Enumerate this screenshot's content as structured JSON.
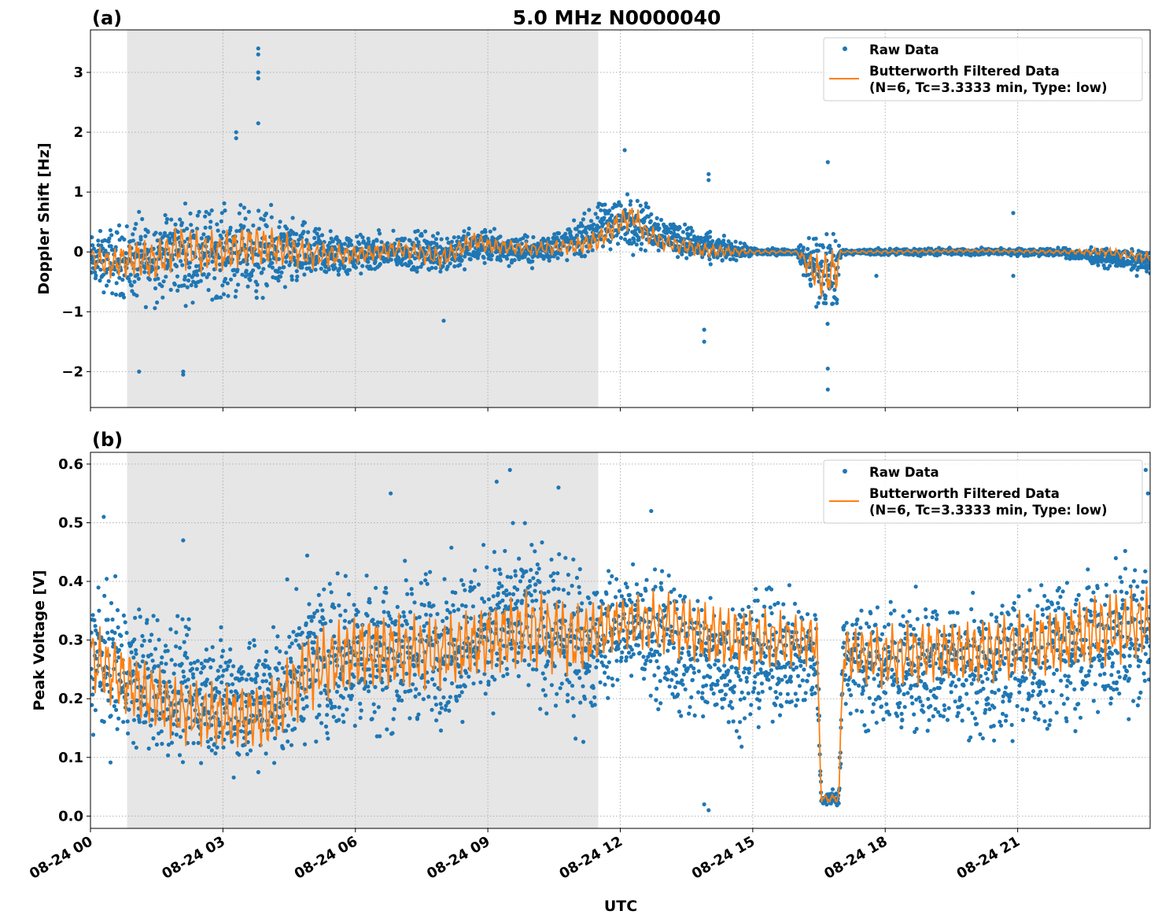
{
  "title": "5.0 MHz N0000040",
  "colors": {
    "raw": "#1f77b4",
    "filtered": "#ff7f0e",
    "shade": "#e6e6e6",
    "grid": "#b0b0b0"
  },
  "x_axis": {
    "label": "UTC",
    "ticks": [
      "08-24 00",
      "08-24 03",
      "08-24 06",
      "08-24 09",
      "08-24 12",
      "08-24 15",
      "08-24 18",
      "08-24 21"
    ],
    "tick_hours": [
      0,
      3,
      6,
      9,
      12,
      15,
      18,
      21
    ],
    "range_hours": [
      0,
      24
    ]
  },
  "chart_data": [
    {
      "type": "scatter",
      "panel_label": "(a)",
      "ylabel": "Doppler Shift [Hz]",
      "ylim": [
        -2.6,
        3.71
      ],
      "yticks": [
        -2,
        -1,
        0,
        1,
        2,
        3
      ],
      "ytick_labels": [
        "−2",
        "−1",
        "0",
        "1",
        "2",
        "3"
      ],
      "grid": true,
      "shaded_region_hours": [
        0.83,
        11.5
      ],
      "legend": {
        "position": "top-right",
        "entries": [
          "Raw Data",
          "Butterworth Filtered Data",
          "(N=6, Tc=3.3333 min, Type: low)"
        ]
      },
      "series": [
        {
          "name": "Raw Data",
          "kind": "points",
          "hours": [
            0,
            1,
            2,
            3,
            4,
            5,
            6,
            7,
            8,
            9,
            10,
            11,
            11.8,
            12.3,
            13,
            14,
            15,
            16,
            16.5,
            16.9,
            17,
            18,
            19,
            20,
            21,
            22,
            23,
            24
          ],
          "low": [
            -0.7,
            -1.1,
            -1.0,
            -1.0,
            -1.0,
            -0.7,
            -0.5,
            -0.4,
            -0.5,
            -0.3,
            -0.3,
            -0.2,
            -0.1,
            -0.1,
            -0.1,
            -0.3,
            -0.1,
            -0.05,
            -1.5,
            -1.5,
            -0.05,
            -0.08,
            -0.08,
            -0.08,
            -0.08,
            -0.1,
            -0.3,
            -0.45
          ],
          "high": [
            0.4,
            0.8,
            1.0,
            1.0,
            0.9,
            0.6,
            0.4,
            0.4,
            0.5,
            0.5,
            0.3,
            0.6,
            1.1,
            1.1,
            0.7,
            0.4,
            0.1,
            0.05,
            0.8,
            0.8,
            0.05,
            0.08,
            0.08,
            0.08,
            0.08,
            0.08,
            0.1,
            0.1
          ],
          "outliers": [
            [
              3.8,
              3.4
            ],
            [
              3.8,
              3.3
            ],
            [
              3.8,
              3.0
            ],
            [
              3.8,
              2.9
            ],
            [
              3.8,
              2.15
            ],
            [
              3.3,
              2.0
            ],
            [
              3.3,
              1.9
            ],
            [
              2.1,
              -2.0
            ],
            [
              2.1,
              -2.05
            ],
            [
              1.1,
              -2.0
            ],
            [
              12.1,
              1.7
            ],
            [
              14.0,
              1.3
            ],
            [
              14.0,
              1.2
            ],
            [
              13.9,
              -1.5
            ],
            [
              13.9,
              -1.3
            ],
            [
              16.7,
              -2.3
            ],
            [
              16.7,
              -1.95
            ],
            [
              16.7,
              1.5
            ],
            [
              20.9,
              0.65
            ],
            [
              20.9,
              -0.4
            ],
            [
              17.8,
              -0.4
            ],
            [
              8.0,
              -1.15
            ]
          ]
        },
        {
          "name": "Butterworth Filtered Data",
          "kind": "line",
          "hours": [
            0,
            0.5,
            1,
            1.5,
            2,
            2.5,
            3,
            3.5,
            4,
            5,
            6,
            7,
            8,
            8.7,
            9,
            10,
            11,
            11.5,
            12,
            12.3,
            12.6,
            13,
            14,
            15,
            16,
            16.5,
            16.9,
            17,
            18,
            20,
            22,
            23,
            24
          ],
          "values": [
            -0.1,
            -0.2,
            -0.1,
            -0.15,
            0.1,
            0.0,
            0.0,
            0.1,
            0.1,
            -0.05,
            -0.05,
            0.05,
            -0.1,
            0.2,
            0.1,
            0.05,
            0.1,
            0.2,
            0.5,
            0.6,
            0.3,
            0.15,
            0.02,
            0.0,
            0.0,
            -0.4,
            -0.3,
            0.0,
            0.0,
            0.02,
            0.0,
            0.0,
            -0.1
          ]
        }
      ]
    },
    {
      "type": "scatter",
      "panel_label": "(b)",
      "ylabel": "Peak Voltage [V]",
      "ylim": [
        -0.021,
        0.62
      ],
      "yticks": [
        0.0,
        0.1,
        0.2,
        0.3,
        0.4,
        0.5,
        0.6
      ],
      "ytick_labels": [
        "0.0",
        "0.1",
        "0.2",
        "0.3",
        "0.4",
        "0.5",
        "0.6"
      ],
      "grid": true,
      "shaded_region_hours": [
        0.83,
        11.5
      ],
      "legend": {
        "position": "top-right",
        "entries": [
          "Raw Data",
          "Butterworth Filtered Data",
          "(N=6, Tc=3.3333 min, Type: low)"
        ]
      },
      "series": [
        {
          "name": "Raw Data",
          "kind": "points",
          "hours": [
            0,
            1,
            2,
            3,
            4,
            5,
            6,
            7,
            8,
            9,
            10,
            11,
            12,
            13,
            14,
            15,
            16,
            16.45,
            16.55,
            16.95,
            17.05,
            18,
            19,
            20,
            21,
            22,
            23,
            24
          ],
          "low": [
            0.1,
            0.07,
            0.05,
            0.05,
            0.03,
            0.08,
            0.1,
            0.1,
            0.12,
            0.15,
            0.15,
            0.1,
            0.2,
            0.15,
            0.1,
            0.12,
            0.15,
            0.15,
            0.01,
            0.01,
            0.15,
            0.1,
            0.1,
            0.1,
            0.1,
            0.12,
            0.12,
            0.15
          ],
          "high": [
            0.45,
            0.4,
            0.36,
            0.36,
            0.36,
            0.45,
            0.46,
            0.46,
            0.46,
            0.5,
            0.52,
            0.46,
            0.45,
            0.45,
            0.42,
            0.42,
            0.4,
            0.4,
            0.05,
            0.05,
            0.4,
            0.4,
            0.4,
            0.4,
            0.42,
            0.45,
            0.47,
            0.48
          ],
          "outliers": [
            [
              9.5,
              0.59
            ],
            [
              9.2,
              0.57
            ],
            [
              10.6,
              0.56
            ],
            [
              6.8,
              0.55
            ],
            [
              0.3,
              0.51
            ],
            [
              14,
              0.01
            ],
            [
              13.9,
              0.02
            ],
            [
              23.9,
              0.59
            ],
            [
              23.95,
              0.55
            ],
            [
              2.1,
              0.47
            ],
            [
              12.7,
              0.52
            ]
          ]
        },
        {
          "name": "Butterworth Filtered Data",
          "kind": "line",
          "hours": [
            0,
            1,
            2,
            3,
            4,
            5,
            6,
            7,
            8,
            9,
            10,
            11,
            12,
            13,
            14,
            15,
            16,
            16.45,
            16.55,
            16.95,
            17.05,
            18,
            19,
            20,
            21,
            22,
            23,
            24
          ],
          "values": [
            0.27,
            0.22,
            0.18,
            0.17,
            0.17,
            0.25,
            0.28,
            0.28,
            0.28,
            0.3,
            0.32,
            0.3,
            0.33,
            0.33,
            0.31,
            0.3,
            0.3,
            0.3,
            0.03,
            0.03,
            0.28,
            0.27,
            0.28,
            0.28,
            0.29,
            0.3,
            0.32,
            0.33
          ]
        }
      ]
    }
  ]
}
